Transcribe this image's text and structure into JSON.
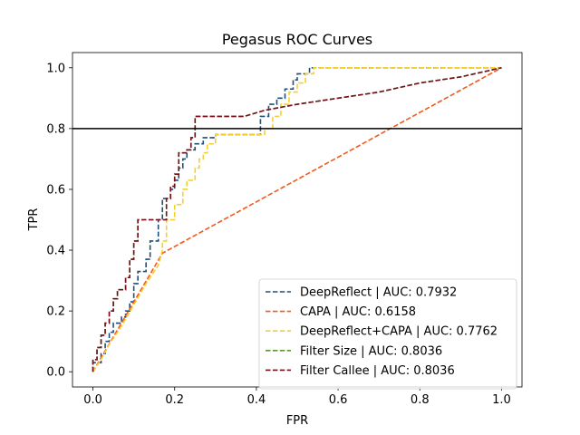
{
  "chart_data": {
    "type": "line",
    "title": "Pegasus ROC Curves",
    "xlabel": "FPR",
    "ylabel": "TPR",
    "xlim": [
      -0.05,
      1.05
    ],
    "ylim": [
      -0.05,
      1.05
    ],
    "xticks": [
      "0.0",
      "0.2",
      "0.4",
      "0.6",
      "0.8",
      "1.0"
    ],
    "yticks": [
      "0.0",
      "0.2",
      "0.4",
      "0.6",
      "0.8",
      "1.0"
    ],
    "grid": false,
    "legend_position": "lower-right",
    "reference_line": {
      "y": 0.8,
      "color": "#000000"
    },
    "series": [
      {
        "name": "DeepReflect | AUC: 0.7932",
        "color": "#1f4e79",
        "x": [
          0.0,
          0.0,
          0.02,
          0.02,
          0.03,
          0.03,
          0.04,
          0.04,
          0.05,
          0.05,
          0.07,
          0.07,
          0.08,
          0.08,
          0.09,
          0.09,
          0.1,
          0.1,
          0.11,
          0.11,
          0.13,
          0.13,
          0.14,
          0.14,
          0.16,
          0.16,
          0.17,
          0.17,
          0.19,
          0.19,
          0.2,
          0.2,
          0.21,
          0.21,
          0.22,
          0.22,
          0.23,
          0.23,
          0.25,
          0.25,
          0.27,
          0.27,
          0.3,
          0.3,
          0.41,
          0.41,
          0.43,
          0.43,
          0.45,
          0.45,
          0.47,
          0.47,
          0.49,
          0.49,
          0.5,
          0.5,
          0.53,
          0.53,
          1.0
        ],
        "y": [
          0.0,
          0.03,
          0.03,
          0.06,
          0.06,
          0.1,
          0.1,
          0.13,
          0.13,
          0.16,
          0.16,
          0.18,
          0.18,
          0.2,
          0.2,
          0.23,
          0.23,
          0.29,
          0.29,
          0.33,
          0.33,
          0.37,
          0.37,
          0.43,
          0.43,
          0.5,
          0.5,
          0.57,
          0.57,
          0.6,
          0.6,
          0.63,
          0.63,
          0.67,
          0.67,
          0.7,
          0.7,
          0.73,
          0.73,
          0.75,
          0.75,
          0.77,
          0.77,
          0.78,
          0.78,
          0.84,
          0.84,
          0.88,
          0.88,
          0.9,
          0.9,
          0.93,
          0.93,
          0.96,
          0.96,
          0.98,
          0.98,
          1.0,
          1.0
        ]
      },
      {
        "name": "CAPA | AUC: 0.6158",
        "color": "#f05a1c",
        "x": [
          0.0,
          0.17,
          1.0
        ],
        "y": [
          0.0,
          0.39,
          1.0
        ]
      },
      {
        "name": "DeepReflect+CAPA | AUC: 0.7762",
        "color": "#f5d033",
        "x": [
          0.0,
          0.02,
          0.04,
          0.07,
          0.1,
          0.13,
          0.16,
          0.17,
          0.17,
          0.18,
          0.18,
          0.2,
          0.2,
          0.22,
          0.22,
          0.23,
          0.23,
          0.25,
          0.25,
          0.26,
          0.26,
          0.27,
          0.27,
          0.28,
          0.28,
          0.3,
          0.3,
          0.42,
          0.42,
          0.44,
          0.44,
          0.46,
          0.46,
          0.48,
          0.48,
          0.5,
          0.5,
          0.52,
          0.52,
          0.54,
          0.54,
          1.0
        ],
        "y": [
          0.0,
          0.04,
          0.09,
          0.15,
          0.22,
          0.29,
          0.35,
          0.4,
          0.43,
          0.43,
          0.5,
          0.5,
          0.55,
          0.55,
          0.6,
          0.6,
          0.63,
          0.63,
          0.67,
          0.67,
          0.7,
          0.7,
          0.72,
          0.72,
          0.75,
          0.75,
          0.78,
          0.78,
          0.8,
          0.8,
          0.84,
          0.84,
          0.88,
          0.88,
          0.92,
          0.92,
          0.95,
          0.95,
          0.98,
          0.98,
          1.0,
          1.0
        ]
      },
      {
        "name": "Filter Size | AUC: 0.8036",
        "color": "#5a9a2c",
        "x": [
          0.0,
          0.0,
          0.01,
          0.01,
          0.02,
          0.02,
          0.03,
          0.03,
          0.04,
          0.04,
          0.05,
          0.05,
          0.06,
          0.06,
          0.08,
          0.08,
          0.09,
          0.09,
          0.1,
          0.1,
          0.11,
          0.11,
          0.18,
          0.18,
          0.19,
          0.19,
          0.2,
          0.2,
          0.21,
          0.21,
          0.23,
          0.23,
          0.24,
          0.24,
          0.25,
          0.25,
          0.37,
          0.42,
          0.5,
          0.6,
          0.7,
          0.8,
          0.9,
          1.0
        ],
        "y": [
          0.0,
          0.04,
          0.04,
          0.08,
          0.08,
          0.12,
          0.12,
          0.16,
          0.16,
          0.2,
          0.2,
          0.24,
          0.24,
          0.27,
          0.27,
          0.31,
          0.31,
          0.37,
          0.37,
          0.43,
          0.43,
          0.5,
          0.5,
          0.57,
          0.57,
          0.61,
          0.61,
          0.65,
          0.65,
          0.72,
          0.72,
          0.73,
          0.73,
          0.77,
          0.77,
          0.84,
          0.84,
          0.86,
          0.88,
          0.9,
          0.92,
          0.95,
          0.97,
          1.0
        ]
      },
      {
        "name": "Filter Callee | AUC: 0.8036",
        "color": "#7a0f1c",
        "x": [
          0.0,
          0.0,
          0.01,
          0.01,
          0.02,
          0.02,
          0.03,
          0.03,
          0.04,
          0.04,
          0.05,
          0.05,
          0.06,
          0.06,
          0.08,
          0.08,
          0.09,
          0.09,
          0.1,
          0.1,
          0.11,
          0.11,
          0.18,
          0.18,
          0.19,
          0.19,
          0.2,
          0.2,
          0.21,
          0.21,
          0.23,
          0.23,
          0.24,
          0.24,
          0.25,
          0.25,
          0.37,
          0.42,
          0.5,
          0.6,
          0.7,
          0.8,
          0.9,
          1.0
        ],
        "y": [
          0.0,
          0.04,
          0.04,
          0.08,
          0.08,
          0.12,
          0.12,
          0.16,
          0.16,
          0.2,
          0.2,
          0.24,
          0.24,
          0.27,
          0.27,
          0.31,
          0.31,
          0.37,
          0.37,
          0.43,
          0.43,
          0.5,
          0.5,
          0.57,
          0.57,
          0.61,
          0.61,
          0.65,
          0.65,
          0.72,
          0.72,
          0.73,
          0.73,
          0.77,
          0.77,
          0.84,
          0.84,
          0.86,
          0.88,
          0.9,
          0.92,
          0.95,
          0.97,
          1.0
        ]
      }
    ]
  }
}
